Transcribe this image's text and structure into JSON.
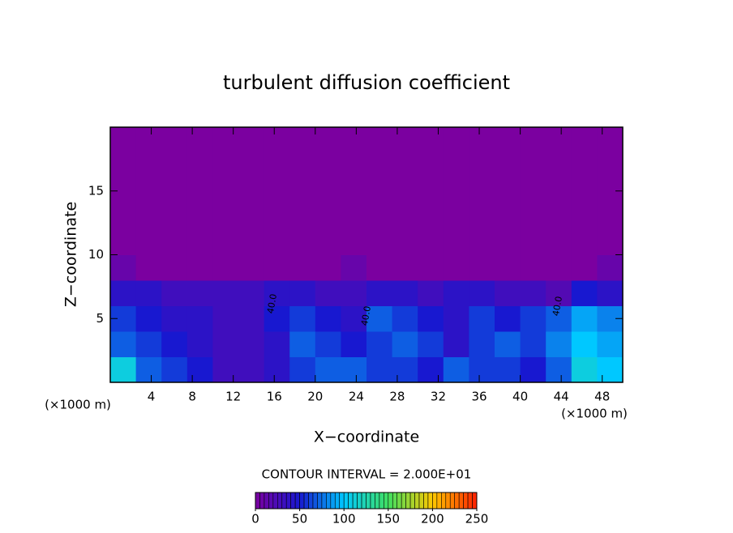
{
  "chart_data": {
    "type": "heatmap",
    "title": "turbulent diffusion coefficient",
    "xlabel": "X−coordinate",
    "ylabel": "Z−coordinate",
    "x_unit_label": "(×1000 m)",
    "y_unit_label": "(×1000 m)",
    "xlim": [
      0,
      50
    ],
    "ylim": [
      0,
      20
    ],
    "xticks": [
      4,
      8,
      12,
      16,
      20,
      24,
      28,
      32,
      36,
      40,
      44,
      48
    ],
    "yticks": [
      5,
      10,
      15
    ],
    "z": [
      [
        110,
        70,
        60,
        50,
        30,
        30,
        40,
        60,
        70,
        70,
        60,
        60,
        50,
        70,
        60,
        60,
        50,
        70,
        110,
        100
      ],
      [
        70,
        60,
        50,
        40,
        30,
        30,
        40,
        70,
        60,
        50,
        60,
        70,
        60,
        40,
        60,
        70,
        60,
        80,
        100,
        90
      ],
      [
        60,
        50,
        40,
        40,
        30,
        30,
        50,
        60,
        50,
        40,
        70,
        60,
        50,
        40,
        60,
        50,
        60,
        70,
        90,
        80
      ],
      [
        40,
        40,
        30,
        30,
        30,
        30,
        40,
        40,
        30,
        30,
        40,
        40,
        30,
        40,
        40,
        30,
        30,
        20,
        50,
        40
      ],
      [
        10,
        0,
        0,
        0,
        0,
        0,
        0,
        0,
        0,
        10,
        0,
        0,
        0,
        0,
        0,
        0,
        0,
        0,
        0,
        10
      ],
      [
        0,
        0,
        0,
        0,
        0,
        0,
        0,
        0,
        0,
        0,
        0,
        0,
        0,
        0,
        0,
        0,
        0,
        0,
        0,
        0
      ],
      [
        0,
        0,
        0,
        0,
        0,
        0,
        0,
        0,
        0,
        0,
        0,
        0,
        0,
        0,
        0,
        0,
        0,
        0,
        0,
        0
      ],
      [
        0,
        0,
        0,
        0,
        0,
        0,
        0,
        0,
        0,
        0,
        0,
        0,
        0,
        0,
        0,
        0,
        0,
        0,
        0,
        0
      ],
      [
        0,
        0,
        0,
        0,
        0,
        0,
        0,
        0,
        0,
        0,
        0,
        0,
        0,
        0,
        0,
        0,
        0,
        0,
        0,
        0
      ],
      [
        0,
        0,
        0,
        0,
        0,
        0,
        0,
        0,
        0,
        0,
        0,
        0,
        0,
        0,
        0,
        0,
        0,
        0,
        0,
        0
      ]
    ],
    "contour_interval_label": "CONTOUR INTERVAL = 2.000E+01",
    "contour_labels": [
      "40.0",
      "40.0",
      "40.0"
    ],
    "clim": [
      0,
      250
    ],
    "colorbar_ticks": [
      0,
      50,
      100,
      150,
      200,
      250
    ],
    "colormap": [
      "#7b00a0",
      "#1818d0",
      "#00c8ff",
      "#40e060",
      "#ffc800",
      "#ff2000"
    ]
  }
}
